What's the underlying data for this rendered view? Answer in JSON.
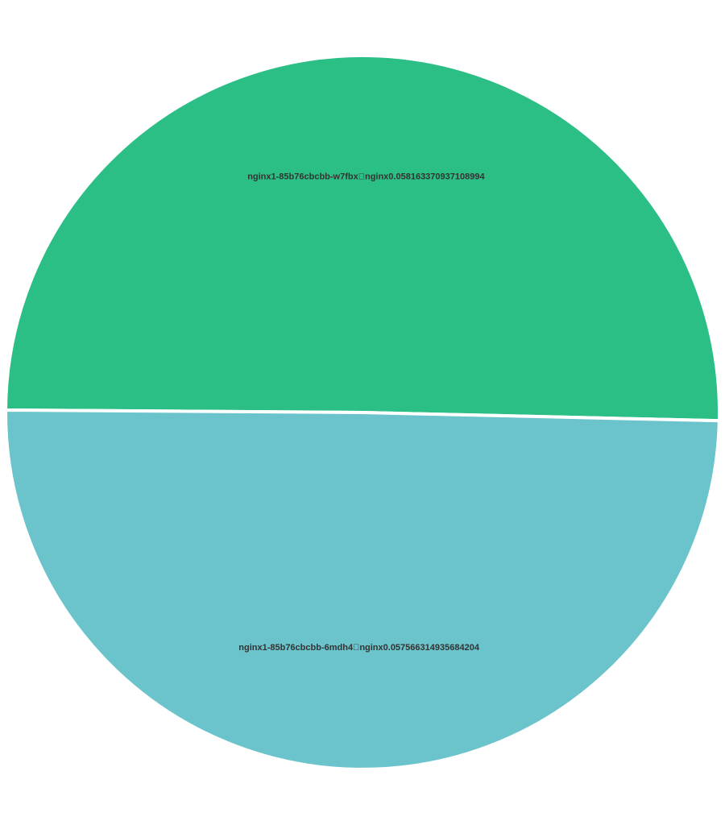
{
  "chart_data": {
    "type": "pie",
    "title": "",
    "slices": [
      {
        "label": "nginx1-85b76cbcbb-w7fbx\u0000nginx0.058163370937108994",
        "value": 0.058163370937108994,
        "color": "#2bbf86"
      },
      {
        "label": "nginx1-85b76cbcbb-6mdh4\u0000nginx0.057566314935684204",
        "value": 0.057566314935684204,
        "color": "#6bc3cb"
      }
    ],
    "legend": "none"
  }
}
